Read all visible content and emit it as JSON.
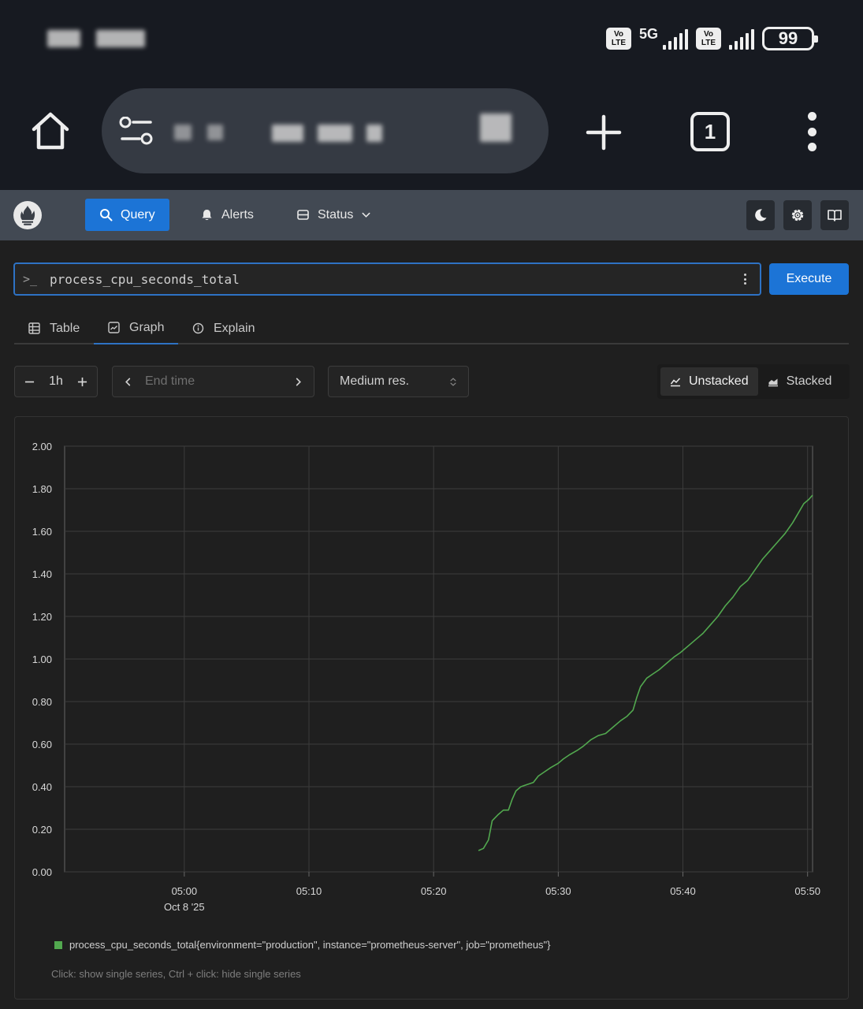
{
  "status_bar": {
    "network": "5G",
    "volte_label": "Vo LTE",
    "battery_level": "99"
  },
  "browser": {
    "tab_count": "1"
  },
  "nav": {
    "query_label": "Query",
    "alerts_label": "Alerts",
    "status_label": "Status"
  },
  "query": {
    "prompt": ">_",
    "expression": "process_cpu_seconds_total",
    "execute_label": "Execute"
  },
  "tabs": {
    "table_label": "Table",
    "graph_label": "Graph",
    "explain_label": "Explain"
  },
  "controls": {
    "range_value": "1h",
    "end_time_placeholder": "End time",
    "resolution_value": "Medium res.",
    "unstacked_label": "Unstacked",
    "stacked_label": "Stacked"
  },
  "legend": {
    "series_label": "process_cpu_seconds_total{environment=\"production\", instance=\"prometheus-server\", job=\"prometheus\"}",
    "hint": "Click: show single series, Ctrl + click: hide single series"
  },
  "colors": {
    "accent": "#1c74d6",
    "series": "#52a84f",
    "nav_bg": "#424953"
  },
  "chart_data": {
    "type": "line",
    "title": "",
    "xlabel": "",
    "ylabel": "",
    "ylim": [
      0,
      2.0
    ],
    "y_ticks": [
      "0.00",
      "0.20",
      "0.40",
      "0.60",
      "0.80",
      "1.00",
      "1.20",
      "1.40",
      "1.60",
      "1.80",
      "2.00"
    ],
    "x_range_minutes": [
      -9.6,
      50.4
    ],
    "x_ticks": [
      {
        "minute": 0,
        "label": "05:00",
        "sublabel": "Oct 8 '25"
      },
      {
        "minute": 10,
        "label": "05:10",
        "sublabel": ""
      },
      {
        "minute": 20,
        "label": "05:20",
        "sublabel": ""
      },
      {
        "minute": 30,
        "label": "05:30",
        "sublabel": ""
      },
      {
        "minute": 40,
        "label": "05:40",
        "sublabel": ""
      },
      {
        "minute": 50,
        "label": "05:50",
        "sublabel": ""
      }
    ],
    "series": [
      {
        "name": "process_cpu_seconds_total{environment=\"production\", instance=\"prometheus-server\", job=\"prometheus\"}",
        "color": "#52a84f",
        "points": [
          [
            23.6,
            0.1
          ],
          [
            24.0,
            0.11
          ],
          [
            24.4,
            0.15
          ],
          [
            24.7,
            0.24
          ],
          [
            25.2,
            0.27
          ],
          [
            25.6,
            0.29
          ],
          [
            26.0,
            0.29
          ],
          [
            26.3,
            0.34
          ],
          [
            26.6,
            0.38
          ],
          [
            27.0,
            0.4
          ],
          [
            27.5,
            0.41
          ],
          [
            28.0,
            0.42
          ],
          [
            28.4,
            0.45
          ],
          [
            28.9,
            0.47
          ],
          [
            29.4,
            0.49
          ],
          [
            30.0,
            0.51
          ],
          [
            30.4,
            0.53
          ],
          [
            30.9,
            0.55
          ],
          [
            31.5,
            0.57
          ],
          [
            32.0,
            0.59
          ],
          [
            32.6,
            0.62
          ],
          [
            33.2,
            0.64
          ],
          [
            33.8,
            0.65
          ],
          [
            34.4,
            0.68
          ],
          [
            35.0,
            0.71
          ],
          [
            35.5,
            0.73
          ],
          [
            36.0,
            0.76
          ],
          [
            36.3,
            0.82
          ],
          [
            36.6,
            0.87
          ],
          [
            37.1,
            0.91
          ],
          [
            37.6,
            0.93
          ],
          [
            38.1,
            0.95
          ],
          [
            38.7,
            0.98
          ],
          [
            39.3,
            1.01
          ],
          [
            39.8,
            1.03
          ],
          [
            40.4,
            1.06
          ],
          [
            41.0,
            1.09
          ],
          [
            41.6,
            1.12
          ],
          [
            42.2,
            1.16
          ],
          [
            42.8,
            1.2
          ],
          [
            43.4,
            1.25
          ],
          [
            44.0,
            1.29
          ],
          [
            44.6,
            1.34
          ],
          [
            45.2,
            1.37
          ],
          [
            45.8,
            1.42
          ],
          [
            46.4,
            1.47
          ],
          [
            47.0,
            1.51
          ],
          [
            47.6,
            1.55
          ],
          [
            48.2,
            1.59
          ],
          [
            48.8,
            1.64
          ],
          [
            49.3,
            1.69
          ],
          [
            49.7,
            1.73
          ],
          [
            50.1,
            1.75
          ],
          [
            50.4,
            1.77
          ]
        ]
      }
    ]
  }
}
